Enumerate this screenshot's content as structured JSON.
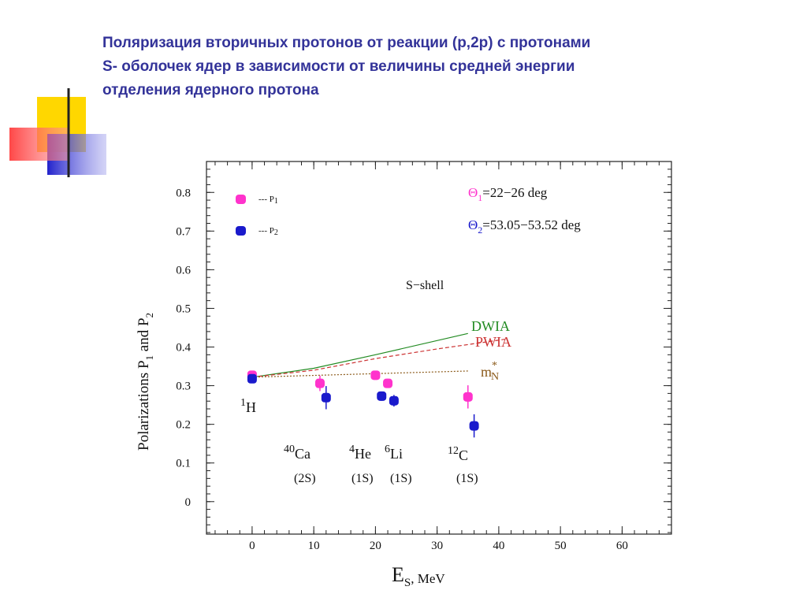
{
  "header": {
    "title_lines": [
      "Поляризация вторичных протонов от реакции (p,2p) с протонами",
      "S- оболочек  ядер в зависимости от величины   средней энергии",
      "отделения ядерного протона"
    ]
  },
  "chart_data": {
    "type": "scatter",
    "xlim": [
      -7.4,
      68
    ],
    "ylim": [
      -0.084,
      0.88
    ],
    "xticks": [
      0,
      10,
      20,
      30,
      40,
      50,
      60
    ],
    "yticks": [
      0,
      0.1,
      0.2,
      0.3,
      0.4,
      0.5,
      0.6,
      0.7,
      0.8
    ],
    "x_label": {
      "main": "E",
      "sub": "S",
      "rest": ", MeV"
    },
    "y_label": {
      "p1": "Polarizations P",
      "s1": "1",
      "p2": " and P",
      "s2": "2"
    },
    "series": [
      {
        "name": "--- P",
        "name_sub": "1",
        "color": "#ff33cc",
        "x": [
          0,
          11,
          20,
          22,
          35
        ],
        "values": [
          0.327,
          0.306,
          0.327,
          0.306,
          0.271
        ],
        "errors": [
          0.01,
          0.02,
          0.01,
          0.012,
          0.03
        ]
      },
      {
        "name": "--- P",
        "name_sub": "2",
        "color": "#1a1acc",
        "x": [
          0,
          12,
          21,
          23,
          36
        ],
        "values": [
          0.318,
          0.269,
          0.273,
          0.261,
          0.196
        ],
        "errors": [
          0.01,
          0.03,
          0.012,
          0.015,
          0.03
        ]
      }
    ],
    "angles": [
      {
        "symbol": "Θ",
        "sub": "1",
        "text": "=22−26 deg",
        "color": "#ff33cc"
      },
      {
        "symbol": "Θ",
        "sub": "2",
        "text": "=53.05−53.52 deg",
        "color": "#1a1acc"
      }
    ],
    "curves": [
      {
        "name": "DWIA",
        "color": "#228b22",
        "style": "solid",
        "x": [
          0,
          10,
          20,
          35
        ],
        "values": [
          0.322,
          0.345,
          0.38,
          0.435
        ]
      },
      {
        "name": "PWIA",
        "color": "#cc3333",
        "style": "dashed",
        "x": [
          0,
          10,
          20,
          30,
          41
        ],
        "values": [
          0.322,
          0.34,
          0.37,
          0.395,
          0.42
        ]
      },
      {
        "name": "m",
        "name_sup": "*",
        "name_sub": "N",
        "color": "#8b5a1a",
        "style": "dotted",
        "x": [
          0,
          35
        ],
        "values": [
          0.322,
          0.338
        ]
      }
    ],
    "annotation": "S−shell",
    "nuclei": [
      {
        "mass": "1",
        "symbol": "H"
      },
      {
        "mass": "40",
        "symbol": "Ca",
        "shell": "(2S)"
      },
      {
        "mass": "4",
        "symbol": "He",
        "shell": "(1S)"
      },
      {
        "mass": "6",
        "symbol": "Li",
        "shell": "(1S)"
      },
      {
        "mass": "12",
        "symbol": "C",
        "shell": "(1S)"
      }
    ]
  }
}
